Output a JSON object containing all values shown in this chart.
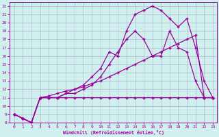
{
  "xlabel": "Windchill (Refroidissement éolien,°C)",
  "xlim": [
    -0.5,
    23.5
  ],
  "ylim": [
    8,
    22.5
  ],
  "xticks": [
    0,
    1,
    2,
    3,
    4,
    5,
    6,
    7,
    8,
    9,
    10,
    11,
    12,
    13,
    14,
    15,
    16,
    17,
    18,
    19,
    20,
    21,
    22,
    23
  ],
  "yticks": [
    8,
    9,
    10,
    11,
    12,
    13,
    14,
    15,
    16,
    17,
    18,
    19,
    20,
    21,
    22
  ],
  "line_color": "#990099",
  "bg_color": "#d0f0ee",
  "grid_color": "#aaaacc",
  "line_flat_x": [
    0,
    1,
    2,
    3,
    4,
    5,
    6,
    7,
    8,
    9,
    10,
    11,
    12,
    13,
    14,
    15,
    16,
    17,
    18,
    19,
    20,
    21,
    22,
    23
  ],
  "line_flat_y": [
    9.0,
    8.5,
    8.0,
    11.0,
    11.0,
    11.0,
    11.0,
    11.0,
    11.0,
    11.0,
    11.0,
    11.0,
    11.0,
    11.0,
    11.0,
    11.0,
    11.0,
    11.0,
    11.0,
    11.0,
    11.0,
    11.0,
    11.0,
    11.0
  ],
  "line_diag_x": [
    0,
    1,
    2,
    3,
    4,
    5,
    6,
    7,
    8,
    9,
    10,
    11,
    12,
    13,
    14,
    15,
    16,
    17,
    18,
    19,
    20,
    21,
    22,
    23
  ],
  "line_diag_y": [
    9.0,
    8.5,
    8.0,
    11.0,
    11.2,
    11.5,
    11.8,
    12.0,
    12.3,
    12.7,
    13.0,
    13.5,
    14.0,
    14.5,
    15.0,
    15.5,
    16.0,
    16.5,
    17.0,
    17.5,
    18.0,
    18.5,
    11.0,
    11.0
  ],
  "line_mid_x": [
    0,
    1,
    2,
    3,
    4,
    5,
    6,
    7,
    8,
    9,
    10,
    11,
    12,
    13,
    14,
    15,
    16,
    17,
    18,
    19,
    20,
    21,
    22,
    23
  ],
  "line_mid_y": [
    9.0,
    8.5,
    8.0,
    11.0,
    11.0,
    11.0,
    11.5,
    11.5,
    12.0,
    12.5,
    13.5,
    15.0,
    16.5,
    18.0,
    19.0,
    18.0,
    16.0,
    16.0,
    19.0,
    17.0,
    16.5,
    13.0,
    11.0,
    11.0
  ],
  "line_top_x": [
    0,
    1,
    2,
    3,
    4,
    5,
    6,
    7,
    8,
    9,
    10,
    11,
    12,
    13,
    14,
    15,
    16,
    17,
    18,
    19,
    20,
    21,
    22,
    23
  ],
  "line_top_y": [
    9.0,
    8.5,
    8.0,
    11.0,
    11.0,
    11.0,
    11.5,
    12.0,
    12.5,
    13.5,
    14.5,
    16.5,
    16.0,
    19.0,
    21.0,
    21.5,
    22.0,
    21.5,
    20.5,
    19.5,
    20.5,
    17.0,
    13.0,
    11.0
  ]
}
